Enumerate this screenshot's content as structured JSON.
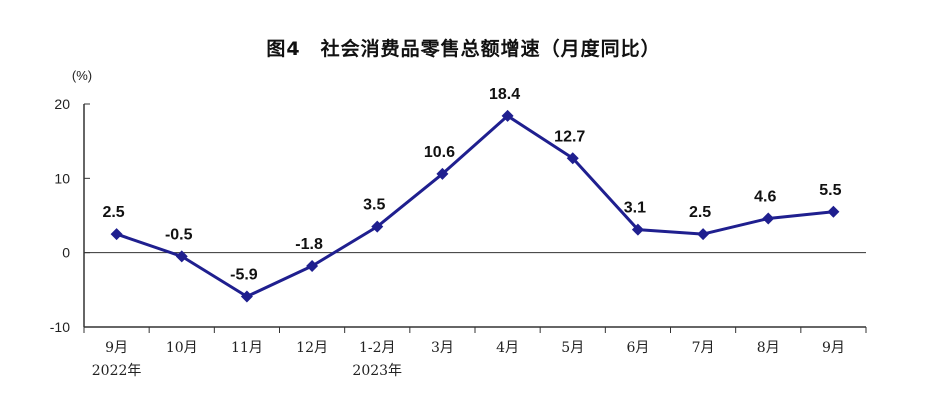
{
  "chart_data": {
    "type": "line",
    "title": "图4　社会消费品零售总额增速（月度同比）",
    "ylabel": "(%)",
    "xlabel": "",
    "ylim": [
      -10,
      20
    ],
    "yticks": [
      "20",
      "10",
      "0",
      "-10"
    ],
    "categories": [
      "9月",
      "10月",
      "11月",
      "12月",
      "1-2月",
      "3月",
      "4月",
      "5月",
      "6月",
      "7月",
      "8月",
      "9月"
    ],
    "year_labels": [
      {
        "category_index": 0,
        "text": "2022年"
      },
      {
        "category_index": 4,
        "text": "2023年"
      }
    ],
    "series": [
      {
        "values": [
          2.5,
          -0.5,
          -5.9,
          -1.8,
          3.5,
          10.6,
          18.4,
          12.7,
          3.1,
          2.5,
          4.6,
          5.5
        ],
        "value_labels": [
          "2.5",
          "-0.5",
          "-5.9",
          "-1.8",
          "3.5",
          "10.6",
          "18.4",
          "12.7",
          "3.1",
          "2.5",
          "4.6",
          "5.5"
        ],
        "color": "#1f1f8f"
      }
    ],
    "grid": false,
    "legend": "none"
  }
}
